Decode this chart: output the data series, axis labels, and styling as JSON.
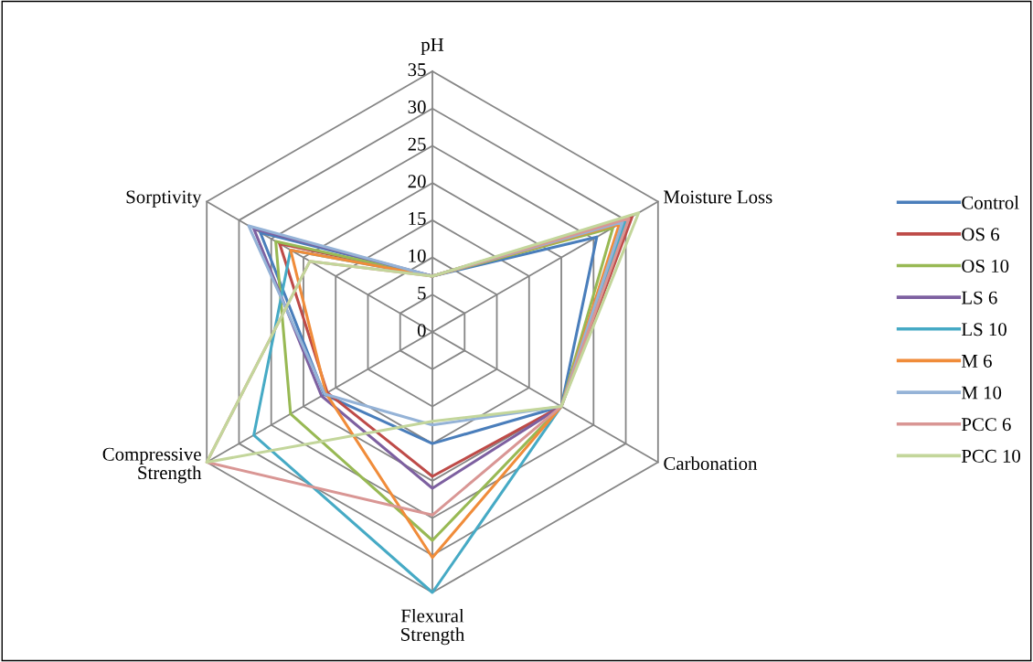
{
  "chart_data": {
    "type": "radar",
    "categories": [
      "pH",
      "Moisture Loss",
      "Carbonation",
      "Flexural\nStrength",
      "Compressive\nStrength",
      "Sorptivity"
    ],
    "ylim": [
      0,
      35
    ],
    "yticks": [
      0,
      5,
      10,
      15,
      20,
      25,
      30,
      35
    ],
    "grid": true,
    "legend": "right",
    "series": [
      {
        "name": "Control",
        "color": "#4a7ebb",
        "values": [
          7.5,
          25.5,
          20,
          15,
          16.8,
          26.7
        ]
      },
      {
        "name": "OS 6",
        "color": "#be4b48",
        "values": [
          7.5,
          31,
          20,
          19.4,
          16.3,
          23.7
        ]
      },
      {
        "name": "OS 10",
        "color": "#98b954",
        "values": [
          7.5,
          28,
          20,
          28,
          22,
          24.3
        ]
      },
      {
        "name": "LS 6",
        "color": "#7d60a0",
        "values": [
          7.5,
          30,
          20,
          21,
          17.2,
          27.7
        ]
      },
      {
        "name": "LS 10",
        "color": "#46aac5",
        "values": [
          7.5,
          30,
          20,
          35,
          27.7,
          22
        ]
      },
      {
        "name": "M 6",
        "color": "#f08c3a",
        "values": [
          7.5,
          29,
          20,
          30.3,
          16.5,
          22
        ]
      },
      {
        "name": "M 10",
        "color": "#95b3d7",
        "values": [
          7.5,
          29.5,
          20,
          12.5,
          16.7,
          28.5
        ]
      },
      {
        "name": "PCC 6",
        "color": "#d99694",
        "values": [
          7.5,
          30.5,
          20,
          24.6,
          35,
          19
        ]
      },
      {
        "name": "PCC 10",
        "color": "#c3d69b",
        "values": [
          7.5,
          32,
          20,
          12,
          35,
          19
        ]
      }
    ]
  }
}
